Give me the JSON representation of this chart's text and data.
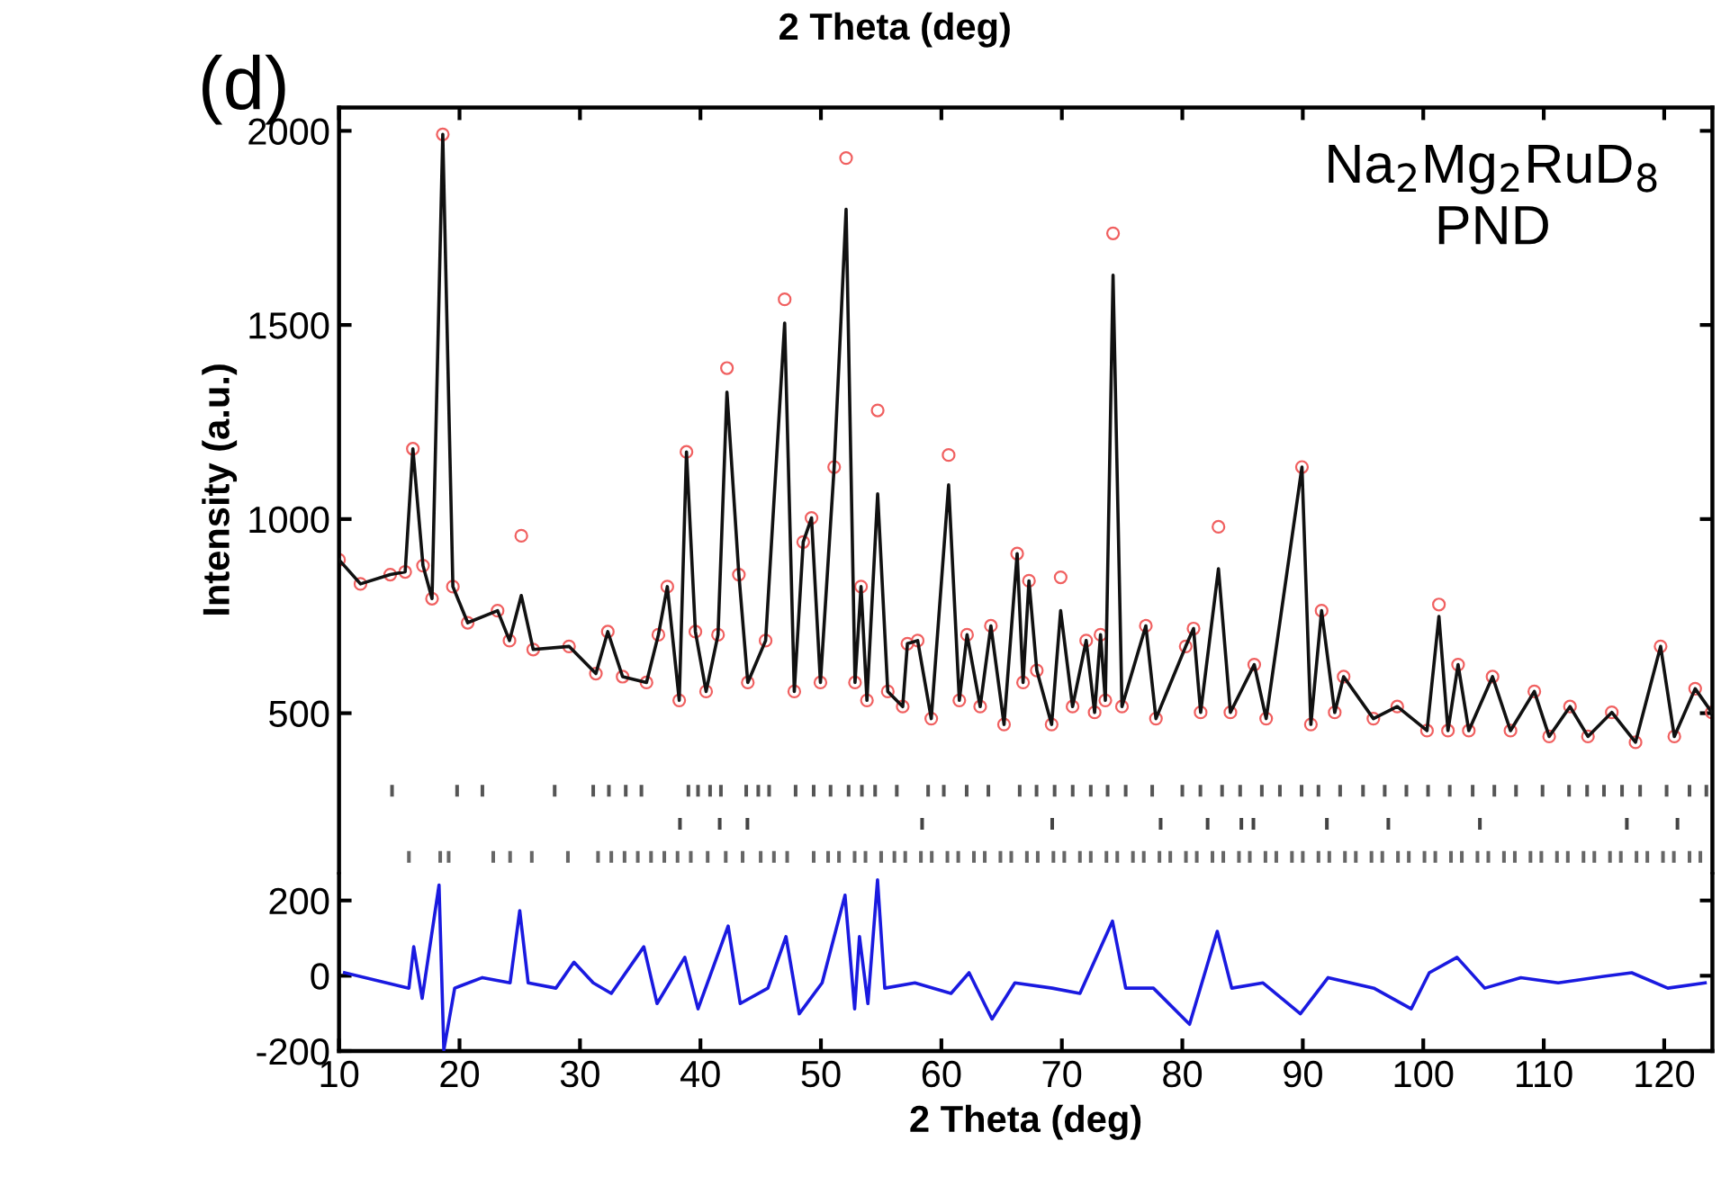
{
  "chart_data": [
    {
      "type": "line",
      "ylabel": "Intensity (a.u.)",
      "xlim": [
        10,
        124
      ],
      "xticks": [
        10,
        20,
        30,
        40,
        50,
        60,
        70,
        80,
        90,
        100,
        110,
        120
      ],
      "ylim": [
        90,
        2060
      ],
      "yticks": [
        500,
        1000,
        1500,
        2000
      ],
      "tick_labels": "y",
      "annotations": [
        "2 Theta (deg)",
        "(d)",
        "Na$_{2}$Mg$_{2}$RuD$_{8}$",
        "PND"
      ],
      "x": [
        10.0,
        11.78,
        14.25,
        15.49,
        16.13,
        16.97,
        17.72,
        18.61,
        19.45,
        20.68,
        23.16,
        24.15,
        25.13,
        26.12,
        29.09,
        31.32,
        32.31,
        33.54,
        35.52,
        36.51,
        37.25,
        38.24,
        38.84,
        39.58,
        40.47,
        41.46,
        42.2,
        43.19,
        43.93,
        45.41,
        46.99,
        47.79,
        48.53,
        49.22,
        49.96,
        51.1,
        52.09,
        52.83,
        53.33,
        53.82,
        54.71,
        55.55,
        56.79,
        57.18,
        58.03,
        59.16,
        60.6,
        61.49,
        62.13,
        63.22,
        64.11,
        65.2,
        66.29,
        66.78,
        67.27,
        67.92,
        69.15,
        69.9,
        70.89,
        72.02,
        72.72,
        73.21,
        73.61,
        74.25,
        74.99,
        76.97,
        77.81,
        80.28,
        80.93,
        81.52,
        83.0,
        83.99,
        85.97,
        86.96,
        89.93,
        90.67,
        91.56,
        92.65,
        93.39,
        95.86,
        97.84,
        100.31,
        101.3,
        102.05,
        102.89,
        103.78,
        105.75,
        107.24,
        109.22,
        110.45,
        112.18,
        113.67,
        115.65,
        117.62,
        119.7,
        120.84,
        122.57,
        123.95
      ],
      "series": [
        {
          "type": "scatter",
          "marker": "circle",
          "color": "#f06060",
          "values": [
            895,
            833,
            857,
            864,
            1181,
            880,
            795,
            1991,
            826,
            733,
            764,
            687,
            957,
            664,
            672,
            602,
            710,
            594,
            579,
            702,
            826,
            533,
            1173,
            710,
            556,
            702,
            1389,
            857,
            579,
            687,
            1566,
            556,
            941,
            1003,
            579,
            1134,
            1930,
            579,
            826,
            533,
            1280,
            556,
            517,
            679,
            687,
            486,
            1165,
            533,
            702,
            517,
            725,
            471,
            911,
            579,
            841,
            610,
            471,
            850,
            517,
            687,
            502,
            702,
            533,
            1736,
            517,
            725,
            486,
            672,
            718,
            502,
            980,
            502,
            625,
            486,
            1134,
            471,
            764,
            502,
            594,
            486,
            517,
            455,
            780,
            455,
            625,
            455,
            594,
            455,
            556,
            440,
            517,
            440,
            502,
            425,
            672,
            440,
            563,
            502
          ]
        },
        {
          "marker": "none",
          "color": "#111111",
          "values": [
            895,
            833,
            857,
            864,
            1181,
            880,
            795,
            1991,
            826,
            733,
            764,
            687,
            803,
            664,
            672,
            602,
            710,
            594,
            579,
            702,
            826,
            533,
            1173,
            710,
            556,
            702,
            1327,
            857,
            579,
            687,
            1505,
            556,
            941,
            1003,
            579,
            1134,
            1798,
            579,
            826,
            533,
            1065,
            556,
            517,
            679,
            687,
            486,
            1088,
            533,
            702,
            517,
            725,
            471,
            911,
            579,
            841,
            610,
            471,
            764,
            517,
            687,
            502,
            702,
            533,
            1628,
            517,
            725,
            486,
            672,
            718,
            502,
            872,
            502,
            625,
            486,
            1134,
            471,
            764,
            502,
            594,
            486,
            517,
            455,
            749,
            455,
            625,
            455,
            594,
            455,
            556,
            440,
            517,
            440,
            502,
            425,
            672,
            440,
            563,
            502
          ]
        },
        {
          "type": "bar",
          "color": "#555555",
          "x": [
            14.4,
            19.8,
            21.9,
            27.9,
            31.1,
            32.4,
            33.8,
            35.1,
            39.0,
            39.8,
            40.8,
            41.7,
            43.8,
            44.8,
            45.7,
            47.9,
            49.4,
            50.8,
            52.3,
            53.4,
            54.5,
            56.3,
            58.9,
            60.2,
            62.1,
            63.9,
            66.5,
            67.9,
            69.4,
            70.9,
            72.4,
            73.8,
            75.3,
            77.5,
            80.0,
            81.5,
            83.3,
            84.8,
            86.6,
            88.1,
            89.9,
            91.3,
            93.1,
            95.0,
            96.8,
            98.6,
            100.4,
            102.2,
            104.1,
            105.9,
            107.7,
            109.9,
            112.1,
            113.6,
            115.0,
            116.5,
            118.0,
            120.2,
            122.1,
            123.5
          ],
          "base": [
            285,
            285,
            285,
            285,
            285,
            285,
            285,
            285,
            285,
            285,
            285,
            285,
            285,
            285,
            285,
            285,
            285,
            285,
            285,
            285,
            285,
            285,
            285,
            285,
            285,
            285,
            285,
            285,
            285,
            285,
            285,
            285,
            285,
            285,
            285,
            285,
            285,
            285,
            285,
            285,
            285,
            285,
            285,
            285,
            285,
            285,
            285,
            285,
            285,
            285,
            285,
            285,
            285,
            285,
            285,
            285,
            285,
            285,
            285,
            285
          ],
          "values": [
            30,
            30,
            30,
            30,
            30,
            30,
            30,
            30,
            30,
            30,
            30,
            30,
            30,
            30,
            30,
            30,
            30,
            30,
            30,
            30,
            30,
            30,
            30,
            30,
            30,
            30,
            30,
            30,
            30,
            30,
            30,
            30,
            30,
            30,
            30,
            30,
            30,
            30,
            30,
            30,
            30,
            30,
            30,
            30,
            30,
            30,
            30,
            30,
            30,
            30,
            30,
            30,
            30,
            30,
            30,
            30,
            30,
            30,
            30,
            30
          ]
        },
        {
          "type": "bar",
          "color": "#444444",
          "x": [
            38.3,
            41.6,
            43.9,
            58.4,
            69.2,
            78.2,
            82.1,
            84.9,
            85.9,
            92.0,
            97.1,
            104.7,
            116.9,
            121.1
          ],
          "base": [
            200,
            200,
            200,
            200,
            200,
            200,
            200,
            200,
            200,
            200,
            200,
            200,
            200,
            200
          ],
          "values": [
            30,
            30,
            30,
            30,
            30,
            30,
            30,
            30,
            30,
            30,
            30,
            30,
            30,
            30
          ]
        },
        {
          "type": "bar",
          "color": "#666666",
          "base": [
            115,
            115,
            115,
            115,
            115,
            115,
            115,
            115,
            115,
            115,
            115,
            115,
            115,
            115,
            115,
            115,
            115,
            115,
            115,
            115,
            115,
            115,
            115,
            115,
            115,
            115,
            115,
            115,
            115,
            115,
            115,
            115,
            115,
            115,
            115,
            115,
            115,
            115,
            115,
            115,
            115,
            115,
            115,
            115,
            115,
            115,
            115,
            115,
            115,
            115,
            115,
            115,
            115,
            115,
            115,
            115,
            115,
            115,
            115,
            115,
            115,
            115,
            115,
            115,
            115,
            115,
            115,
            115,
            115,
            115,
            115,
            115,
            115,
            115,
            115,
            115,
            115,
            115,
            115,
            115,
            115,
            115,
            115,
            115,
            115,
            115,
            115,
            115,
            115
          ],
          "x": [
            15.8,
            18.4,
            19.1,
            22.8,
            24.2,
            26.0,
            29.0,
            31.5,
            32.6,
            33.7,
            34.8,
            35.9,
            37.0,
            38.1,
            39.2,
            40.6,
            42.1,
            43.5,
            45.0,
            46.1,
            47.2,
            49.4,
            50.6,
            51.5,
            52.8,
            53.7,
            55.0,
            56.1,
            57.0,
            58.3,
            59.2,
            60.5,
            61.4,
            62.7,
            63.6,
            64.9,
            65.8,
            67.1,
            68.0,
            69.3,
            70.2,
            71.5,
            72.4,
            73.7,
            74.6,
            75.9,
            76.8,
            78.1,
            79.0,
            80.3,
            81.2,
            82.5,
            83.4,
            84.7,
            85.6,
            86.9,
            87.8,
            89.1,
            90.0,
            91.3,
            92.2,
            93.5,
            94.4,
            95.7,
            96.6,
            97.9,
            98.8,
            100.1,
            101.0,
            102.3,
            103.2,
            104.5,
            105.4,
            106.7,
            107.6,
            108.9,
            109.8,
            111.1,
            112.0,
            113.3,
            114.2,
            115.5,
            116.4,
            117.7,
            118.6,
            119.9,
            120.8,
            122.1,
            123.0
          ],
          "values": [
            30,
            30,
            30,
            30,
            30,
            30,
            30,
            30,
            30,
            30,
            30,
            30,
            30,
            30,
            30,
            30,
            30,
            30,
            30,
            30,
            30,
            30,
            30,
            30,
            30,
            30,
            30,
            30,
            30,
            30,
            30,
            30,
            30,
            30,
            30,
            30,
            30,
            30,
            30,
            30,
            30,
            30,
            30,
            30,
            30,
            30,
            30,
            30,
            30,
            30,
            30,
            30,
            30,
            30,
            30,
            30,
            30,
            30,
            30,
            30,
            30,
            30,
            30,
            30,
            30,
            30,
            30,
            30,
            30,
            30,
            30,
            30,
            30,
            30,
            30,
            30,
            30,
            30,
            30,
            30,
            30,
            30,
            30,
            30,
            30,
            30,
            30,
            30,
            30
          ]
        }
      ]
    },
    {
      "type": "line",
      "xlabel": "2 Theta (deg)",
      "xlim": [
        10,
        124
      ],
      "xticks": [
        10,
        20,
        30,
        40,
        50,
        60,
        70,
        80,
        90,
        100,
        110,
        120
      ],
      "ylim": [
        -200,
        270
      ],
      "yticks": [
        {
          "value": 200,
          "label": "200"
        },
        0,
        {
          "value": -200,
          "label": "-200"
        }
      ],
      "x": [
        10.46,
        15.8,
        16.2,
        16.9,
        18.3,
        18.7,
        19.6,
        21.9,
        24.2,
        25.0,
        25.7,
        28.0,
        29.5,
        31.1,
        32.6,
        35.3,
        36.4,
        38.7,
        39.8,
        42.3,
        43.3,
        45.6,
        47.1,
        48.2,
        50.1,
        52.0,
        52.8,
        53.2,
        53.9,
        54.7,
        55.3,
        57.8,
        60.8,
        62.3,
        64.2,
        66.1,
        69.2,
        71.5,
        74.2,
        75.3,
        77.6,
        80.6,
        82.9,
        84.1,
        86.7,
        89.8,
        92.1,
        95.9,
        99.0,
        100.5,
        102.8,
        105.1,
        108.1,
        111.2,
        114.2,
        117.3,
        120.3,
        123.4
      ],
      "series": [
        {
          "marker": "none",
          "color": "#1a1ae0",
          "values": [
            8,
            -33,
            77,
            -60,
            241,
            -197,
            -33,
            -5,
            -19,
            173,
            -19,
            -33,
            36,
            -19,
            -47,
            77,
            -74,
            49,
            -88,
            132,
            -74,
            -33,
            104,
            -101,
            -19,
            214,
            -88,
            104,
            -74,
            255,
            -33,
            -19,
            -47,
            8,
            -115,
            -19,
            -33,
            -47,
            145,
            -33,
            -33,
            -129,
            118,
            -33,
            -19,
            -101,
            -5,
            -33,
            -88,
            8,
            49,
            -33,
            -5,
            -19,
            -5,
            8,
            -33,
            -19
          ]
        }
      ]
    }
  ]
}
